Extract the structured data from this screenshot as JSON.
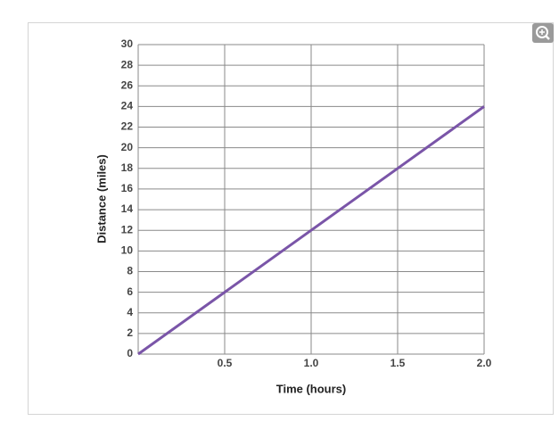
{
  "chart_data": {
    "type": "line",
    "x_label": "Time (hours)",
    "y_label": "Distance (miles)",
    "x": [
      0,
      0.5,
      1,
      1.5,
      2
    ],
    "values": [
      0,
      6,
      12,
      18,
      24
    ],
    "color": "#7a55a8",
    "xlim": [
      0,
      2
    ],
    "xticks": [
      0.5,
      {
        "value": 1,
        "label": "1.0"
      },
      1.5,
      {
        "value": 2,
        "label": "2.0"
      }
    ],
    "ylim": [
      0,
      30
    ],
    "yticks": [
      0,
      2,
      4,
      6,
      8,
      10,
      12,
      14,
      16,
      18,
      20,
      22,
      24,
      26,
      28,
      30
    ],
    "grid": true
  }
}
